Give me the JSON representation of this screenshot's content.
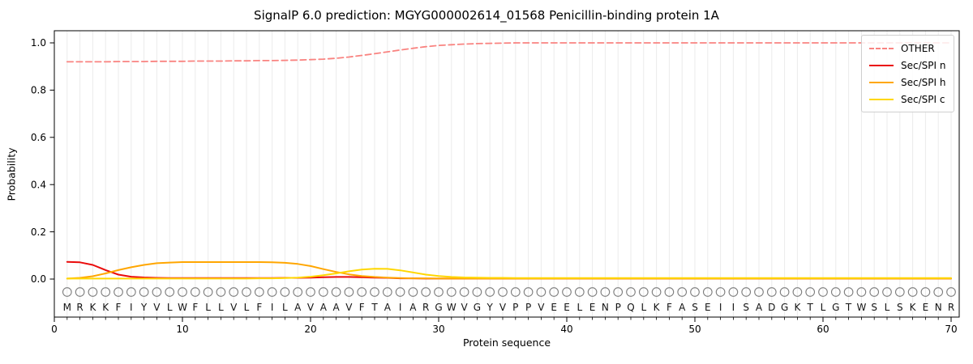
{
  "figure": {
    "title": "SignalP 6.0 prediction: MGYG000002614_01568 Penicillin-binding protein 1A"
  },
  "chart_data": {
    "type": "line",
    "title": "SignalP 6.0 prediction: MGYG000002614_01568 Penicillin-binding protein 1A",
    "xlabel": "Protein sequence",
    "ylabel": "Probability",
    "x_ticks": [
      0,
      10,
      20,
      30,
      40,
      50,
      60,
      70
    ],
    "y_tick_labels": [
      "0.0",
      "0.2",
      "0.4",
      "0.6",
      "0.8",
      "1.0"
    ],
    "y_tick_values": [
      0.0,
      0.2,
      0.4,
      0.6,
      0.8,
      1.0
    ],
    "xlim": [
      0,
      70.6
    ],
    "value_range": [
      0.0,
      1.0
    ],
    "grid": "light vertical gridline at every residue position 1-70",
    "legend_position": "upper-right",
    "sequence": "MRKKFIYVLWFLLVLFILAVAAVFTAIARGWVGYVPPVEELENPQLKFASEIISADGKTLGTWSLSKENR",
    "sequence_length": 70,
    "series": [
      {
        "name": "OTHER",
        "style": "dashed",
        "color": "#f98380",
        "values": [
          0.92,
          0.92,
          0.92,
          0.92,
          0.921,
          0.921,
          0.921,
          0.922,
          0.922,
          0.922,
          0.923,
          0.923,
          0.923,
          0.924,
          0.924,
          0.925,
          0.925,
          0.926,
          0.927,
          0.929,
          0.931,
          0.935,
          0.94,
          0.947,
          0.954,
          0.962,
          0.97,
          0.977,
          0.984,
          0.989,
          0.992,
          0.995,
          0.997,
          0.998,
          0.999,
          1.0,
          1.0,
          1.0,
          1.0,
          1.0,
          1.0,
          1.0,
          1.0,
          1.0,
          1.0,
          1.0,
          1.0,
          1.0,
          1.0,
          1.0,
          1.0,
          1.0,
          1.0,
          1.0,
          1.0,
          1.0,
          1.0,
          1.0,
          1.0,
          1.0,
          1.0,
          1.0,
          1.0,
          1.0,
          1.0,
          1.0,
          1.0,
          1.0,
          1.0,
          1.0
        ]
      },
      {
        "name": "Sec/SPI n",
        "style": "solid",
        "color": "#ea0b0b",
        "values": [
          0.073,
          0.071,
          0.06,
          0.038,
          0.019,
          0.01,
          0.007,
          0.005,
          0.004,
          0.004,
          0.004,
          0.004,
          0.004,
          0.004,
          0.004,
          0.004,
          0.004,
          0.005,
          0.005,
          0.006,
          0.008,
          0.009,
          0.009,
          0.008,
          0.006,
          0.005,
          0.003,
          0.003,
          0.002,
          0.002,
          0.002,
          0.002,
          0.002,
          0.002,
          0.002,
          0.002,
          0.002,
          0.002,
          0.002,
          0.002,
          0.002,
          0.002,
          0.002,
          0.002,
          0.002,
          0.002,
          0.002,
          0.002,
          0.002,
          0.002,
          0.002,
          0.002,
          0.002,
          0.002,
          0.002,
          0.002,
          0.002,
          0.002,
          0.002,
          0.002,
          0.002,
          0.002,
          0.002,
          0.002,
          0.002,
          0.002,
          0.002,
          0.002,
          0.002,
          0.002
        ]
      },
      {
        "name": "Sec/SPI h",
        "style": "solid",
        "color": "#ffa600",
        "values": [
          0.002,
          0.005,
          0.012,
          0.024,
          0.038,
          0.05,
          0.06,
          0.067,
          0.07,
          0.072,
          0.072,
          0.072,
          0.072,
          0.072,
          0.072,
          0.072,
          0.071,
          0.069,
          0.064,
          0.055,
          0.042,
          0.03,
          0.02,
          0.013,
          0.009,
          0.006,
          0.004,
          0.003,
          0.003,
          0.002,
          0.002,
          0.002,
          0.002,
          0.002,
          0.002,
          0.002,
          0.002,
          0.002,
          0.002,
          0.002,
          0.002,
          0.002,
          0.002,
          0.002,
          0.002,
          0.002,
          0.002,
          0.002,
          0.002,
          0.002,
          0.002,
          0.002,
          0.002,
          0.002,
          0.002,
          0.002,
          0.002,
          0.002,
          0.002,
          0.002,
          0.002,
          0.002,
          0.002,
          0.002,
          0.002,
          0.002,
          0.002,
          0.002,
          0.002,
          0.002
        ]
      },
      {
        "name": "Sec/SPI c",
        "style": "solid",
        "color": "#ffd700",
        "values": [
          0.002,
          0.002,
          0.002,
          0.002,
          0.002,
          0.002,
          0.002,
          0.002,
          0.002,
          0.002,
          0.002,
          0.002,
          0.002,
          0.002,
          0.002,
          0.003,
          0.003,
          0.004,
          0.006,
          0.01,
          0.016,
          0.024,
          0.033,
          0.04,
          0.044,
          0.043,
          0.037,
          0.028,
          0.019,
          0.013,
          0.009,
          0.007,
          0.006,
          0.005,
          0.005,
          0.004,
          0.004,
          0.004,
          0.004,
          0.004,
          0.004,
          0.004,
          0.004,
          0.004,
          0.004,
          0.004,
          0.004,
          0.004,
          0.004,
          0.004,
          0.004,
          0.004,
          0.004,
          0.004,
          0.004,
          0.004,
          0.004,
          0.004,
          0.004,
          0.004,
          0.004,
          0.004,
          0.004,
          0.004,
          0.004,
          0.004,
          0.004,
          0.004,
          0.004,
          0.004
        ]
      }
    ],
    "colors": {
      "grid": "#ebebeb",
      "spine": "#000000",
      "residue_marker": "#7d7d7d",
      "text": "#141414"
    }
  }
}
